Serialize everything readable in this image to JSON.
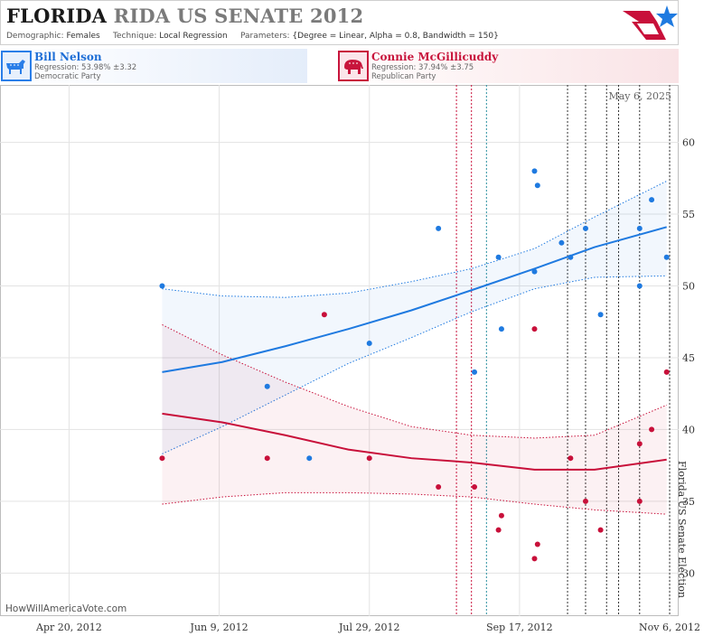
{
  "header": {
    "title_main": "FLORIDA",
    "title_rest": "RIDA US SENATE 2012",
    "demographic_label": "Demographic:",
    "demographic_value": "Females",
    "technique_label": "Technique:",
    "technique_value": "Local Regression",
    "parameters_label": "Parameters:",
    "parameters_value": "{Degree = Linear, Alpha = 0.8, Bandwidth = 150}"
  },
  "candidates": {
    "dem": {
      "name": "Bill Nelson",
      "regression": "Regression: 53.98% ±3.32",
      "party": "Democratic Party",
      "icon": "donkey-icon",
      "color": "#1f7ae0"
    },
    "rep": {
      "name": "Connie McGillicuddy",
      "regression": "Regression: 37.94% ±3.75",
      "party": "Republican Party",
      "icon": "elephant-icon",
      "color": "#c8103a"
    }
  },
  "date_label": "May 6, 2025",
  "watermark": "HowWillAmericaVote.com",
  "event_label": "Florida US Senate Election",
  "chart_data": {
    "type": "scatter",
    "x_tick_labels": [
      "Apr 20, 2012",
      "Jun 9, 2012",
      "Jul 29, 2012",
      "Sep 17, 2012",
      "Nov 6, 2012"
    ],
    "y_ticks": [
      30,
      35,
      40,
      45,
      50,
      55,
      60
    ],
    "ylim": [
      27,
      64
    ],
    "xlim": [
      "2012-03-28",
      "2012-11-09"
    ],
    "grid": true,
    "series": [
      {
        "name": "Bill Nelson",
        "color": "#1f7ae0",
        "points": [
          {
            "x": "2012-05-21",
            "y": 50
          },
          {
            "x": "2012-06-25",
            "y": 43
          },
          {
            "x": "2012-07-09",
            "y": 38
          },
          {
            "x": "2012-07-29",
            "y": 46
          },
          {
            "x": "2012-08-21",
            "y": 54
          },
          {
            "x": "2012-09-02",
            "y": 44
          },
          {
            "x": "2012-09-10",
            "y": 52
          },
          {
            "x": "2012-09-11",
            "y": 47
          },
          {
            "x": "2012-09-22",
            "y": 58
          },
          {
            "x": "2012-09-23",
            "y": 57
          },
          {
            "x": "2012-09-22",
            "y": 51
          },
          {
            "x": "2012-10-01",
            "y": 53
          },
          {
            "x": "2012-10-04",
            "y": 52
          },
          {
            "x": "2012-10-09",
            "y": 54
          },
          {
            "x": "2012-10-14",
            "y": 48
          },
          {
            "x": "2012-10-27",
            "y": 54
          },
          {
            "x": "2012-10-27",
            "y": 50
          },
          {
            "x": "2012-10-31",
            "y": 56
          },
          {
            "x": "2012-11-05",
            "y": 52
          }
        ],
        "trend": [
          {
            "x": "2012-05-21",
            "y": 44.0
          },
          {
            "x": "2012-06-10",
            "y": 44.7
          },
          {
            "x": "2012-07-01",
            "y": 45.8
          },
          {
            "x": "2012-07-22",
            "y": 47.0
          },
          {
            "x": "2012-08-12",
            "y": 48.3
          },
          {
            "x": "2012-09-01",
            "y": 49.7
          },
          {
            "x": "2012-09-22",
            "y": 51.2
          },
          {
            "x": "2012-10-12",
            "y": 52.7
          },
          {
            "x": "2012-11-05",
            "y": 54.1
          }
        ],
        "band_upper": [
          {
            "x": "2012-05-21",
            "y": 49.8
          },
          {
            "x": "2012-06-10",
            "y": 49.3
          },
          {
            "x": "2012-07-01",
            "y": 49.2
          },
          {
            "x": "2012-07-22",
            "y": 49.5
          },
          {
            "x": "2012-08-12",
            "y": 50.3
          },
          {
            "x": "2012-09-01",
            "y": 51.2
          },
          {
            "x": "2012-09-22",
            "y": 52.6
          },
          {
            "x": "2012-10-12",
            "y": 54.8
          },
          {
            "x": "2012-11-05",
            "y": 57.3
          }
        ],
        "band_lower": [
          {
            "x": "2012-05-21",
            "y": 38.3
          },
          {
            "x": "2012-06-10",
            "y": 40.2
          },
          {
            "x": "2012-07-01",
            "y": 42.4
          },
          {
            "x": "2012-07-22",
            "y": 44.6
          },
          {
            "x": "2012-08-12",
            "y": 46.4
          },
          {
            "x": "2012-09-01",
            "y": 48.2
          },
          {
            "x": "2012-09-22",
            "y": 49.8
          },
          {
            "x": "2012-10-12",
            "y": 50.6
          },
          {
            "x": "2012-11-05",
            "y": 50.7
          }
        ]
      },
      {
        "name": "Connie McGillicuddy",
        "color": "#c8103a",
        "points": [
          {
            "x": "2012-05-21",
            "y": 38
          },
          {
            "x": "2012-06-25",
            "y": 38
          },
          {
            "x": "2012-07-14",
            "y": 48
          },
          {
            "x": "2012-07-29",
            "y": 38
          },
          {
            "x": "2012-08-21",
            "y": 36
          },
          {
            "x": "2012-09-02",
            "y": 36
          },
          {
            "x": "2012-09-10",
            "y": 33
          },
          {
            "x": "2012-09-11",
            "y": 34
          },
          {
            "x": "2012-09-22",
            "y": 47
          },
          {
            "x": "2012-09-22",
            "y": 31
          },
          {
            "x": "2012-09-23",
            "y": 32
          },
          {
            "x": "2012-10-04",
            "y": 38
          },
          {
            "x": "2012-10-09",
            "y": 35
          },
          {
            "x": "2012-10-14",
            "y": 33
          },
          {
            "x": "2012-10-27",
            "y": 39
          },
          {
            "x": "2012-10-27",
            "y": 35
          },
          {
            "x": "2012-10-31",
            "y": 40
          },
          {
            "x": "2012-11-05",
            "y": 44
          }
        ],
        "trend": [
          {
            "x": "2012-05-21",
            "y": 41.1
          },
          {
            "x": "2012-06-10",
            "y": 40.5
          },
          {
            "x": "2012-07-01",
            "y": 39.6
          },
          {
            "x": "2012-07-22",
            "y": 38.6
          },
          {
            "x": "2012-08-12",
            "y": 38.0
          },
          {
            "x": "2012-09-01",
            "y": 37.7
          },
          {
            "x": "2012-09-22",
            "y": 37.2
          },
          {
            "x": "2012-10-12",
            "y": 37.2
          },
          {
            "x": "2012-11-05",
            "y": 37.9
          }
        ],
        "band_upper": [
          {
            "x": "2012-05-21",
            "y": 47.3
          },
          {
            "x": "2012-06-10",
            "y": 45.2
          },
          {
            "x": "2012-07-01",
            "y": 43.3
          },
          {
            "x": "2012-07-22",
            "y": 41.6
          },
          {
            "x": "2012-08-12",
            "y": 40.2
          },
          {
            "x": "2012-09-01",
            "y": 39.6
          },
          {
            "x": "2012-09-22",
            "y": 39.4
          },
          {
            "x": "2012-10-12",
            "y": 39.6
          },
          {
            "x": "2012-11-05",
            "y": 41.7
          }
        ],
        "band_lower": [
          {
            "x": "2012-05-21",
            "y": 34.8
          },
          {
            "x": "2012-06-10",
            "y": 35.3
          },
          {
            "x": "2012-07-01",
            "y": 35.6
          },
          {
            "x": "2012-07-22",
            "y": 35.6
          },
          {
            "x": "2012-08-12",
            "y": 35.5
          },
          {
            "x": "2012-09-01",
            "y": 35.3
          },
          {
            "x": "2012-09-22",
            "y": 34.8
          },
          {
            "x": "2012-10-12",
            "y": 34.4
          },
          {
            "x": "2012-11-05",
            "y": 34.1
          }
        ]
      }
    ],
    "vertical_markers": [
      {
        "x": "2012-08-27",
        "style": "dotted",
        "color": "#c8103a"
      },
      {
        "x": "2012-09-01",
        "style": "dotted",
        "color": "#c8103a"
      },
      {
        "x": "2012-09-06",
        "style": "dotted",
        "color": "#2a8fa0"
      },
      {
        "x": "2012-10-03",
        "style": "dotted",
        "color": "#333333"
      },
      {
        "x": "2012-10-09",
        "style": "dotted",
        "color": "#333333"
      },
      {
        "x": "2012-10-16",
        "style": "dotted",
        "color": "#333333"
      },
      {
        "x": "2012-10-20",
        "style": "dotted",
        "color": "#333333"
      },
      {
        "x": "2012-10-27",
        "style": "dotted",
        "color": "#333333"
      },
      {
        "x": "2012-11-06",
        "style": "dotted",
        "color": "#333333"
      }
    ]
  }
}
